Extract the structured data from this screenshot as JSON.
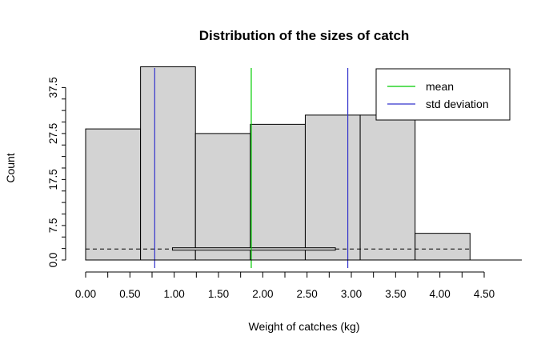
{
  "chart_data": {
    "type": "bar",
    "title": "Distribution of the sizes of catch",
    "xlabel": "Weight of catches (kg)",
    "ylabel": "Count",
    "xlim": [
      0,
      4.5
    ],
    "ylim": [
      0,
      40
    ],
    "x_ticks": [
      "0.00",
      "0.50",
      "1.00",
      "1.50",
      "2.00",
      "2.50",
      "3.00",
      "3.50",
      "4.00",
      "4.50"
    ],
    "x_tick_values": [
      0,
      0.5,
      1,
      1.5,
      2,
      2.5,
      3,
      3.5,
      4,
      4.5
    ],
    "y_ticks": [
      "0.0",
      "7.5",
      "17.5",
      "27.5",
      "37.5"
    ],
    "y_tick_values": [
      0,
      7.5,
      17.5,
      27.5,
      37.5
    ],
    "bins": [
      {
        "start": 0.0,
        "end": 0.62,
        "count": 28.5
      },
      {
        "start": 0.62,
        "end": 1.24,
        "count": 42.0
      },
      {
        "start": 1.24,
        "end": 1.86,
        "count": 27.5
      },
      {
        "start": 1.86,
        "end": 2.48,
        "count": 29.5
      },
      {
        "start": 2.48,
        "end": 3.1,
        "count": 31.5
      },
      {
        "start": 3.1,
        "end": 3.72,
        "count": 31.5
      },
      {
        "start": 3.72,
        "end": 4.34,
        "count": 5.8
      }
    ],
    "mean": 1.87,
    "std_deviation_lines": [
      0.78,
      2.96
    ],
    "boxplot": {
      "whisker_low": 0.0,
      "q1": 0.98,
      "median": 1.87,
      "q3": 2.82,
      "whisker_high": 4.34,
      "y": 2.4
    },
    "legend": {
      "position": "top-right",
      "entries": [
        {
          "label": "mean",
          "color": "#00cc00"
        },
        {
          "label": "std deviation",
          "color": "#3333cc"
        }
      ]
    },
    "colors": {
      "bar_fill": "#d3d3d3",
      "bar_stroke": "#000000",
      "mean": "#00cc00",
      "std": "#3333cc"
    }
  }
}
